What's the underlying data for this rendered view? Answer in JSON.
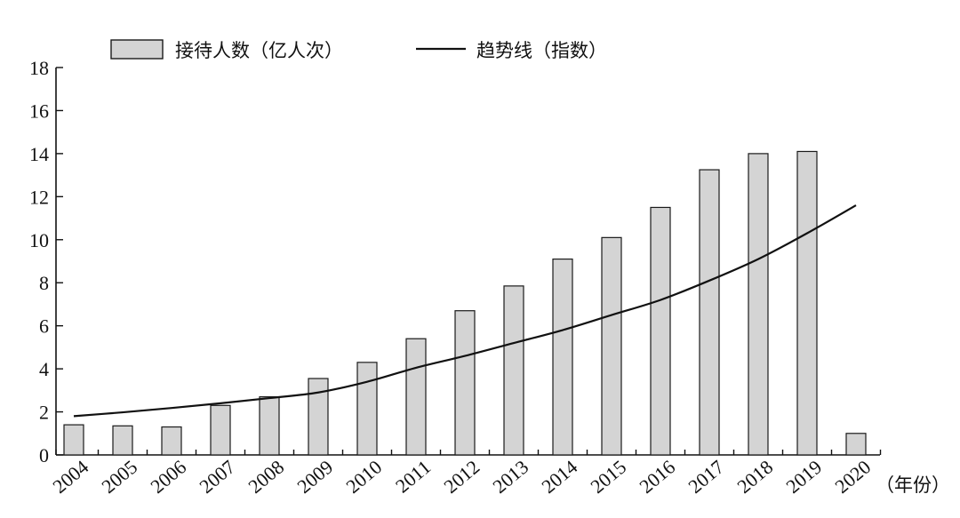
{
  "chart_data": {
    "type": "bar",
    "title": "",
    "xlabel": "（年份）",
    "ylabel": "",
    "ylim": [
      0,
      18
    ],
    "yticks": [
      "0",
      "2",
      "4",
      "6",
      "8",
      "10",
      "12",
      "14",
      "16",
      "18"
    ],
    "categories": [
      "2004",
      "2005",
      "2006",
      "2007",
      "2008",
      "2009",
      "2010",
      "2011",
      "2012",
      "2013",
      "2014",
      "2015",
      "2016",
      "2017",
      "2018",
      "2019",
      "2020"
    ],
    "series": [
      {
        "name": "接待人数（亿人次）",
        "type": "bar",
        "values": [
          1.4,
          1.35,
          1.3,
          2.3,
          2.7,
          3.55,
          4.3,
          5.4,
          6.7,
          7.85,
          9.1,
          10.1,
          11.5,
          13.25,
          14.0,
          14.1,
          1.0
        ]
      },
      {
        "name": "趋势线（指数）",
        "type": "line",
        "fit": "exponential",
        "values": [
          1.8,
          1.98,
          2.18,
          2.4,
          2.64,
          2.9,
          3.4,
          4.05,
          4.6,
          5.2,
          5.8,
          6.5,
          7.2,
          8.1,
          9.1,
          10.3,
          11.6
        ]
      }
    ],
    "legend": {
      "position": "top",
      "entries": [
        "接待人数（亿人次）",
        "趋势线（指数）"
      ]
    }
  }
}
